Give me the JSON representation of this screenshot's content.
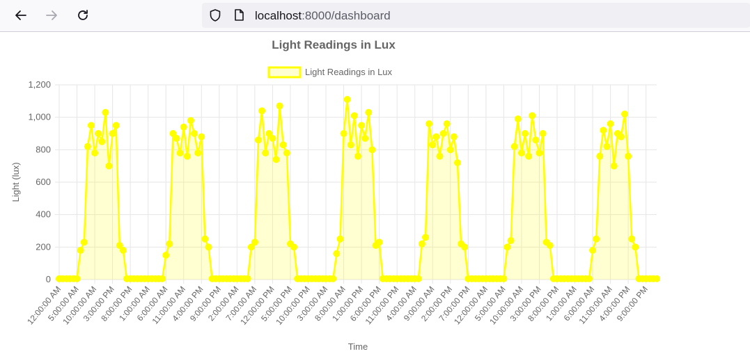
{
  "browser": {
    "url_host": "localhost",
    "url_path": ":8000/dashboard",
    "icons": [
      "back-arrow-icon",
      "forward-arrow-icon",
      "reload-icon",
      "shield-icon",
      "page-icon"
    ]
  },
  "chart_data": {
    "type": "line",
    "title": "Light Readings in Lux",
    "xlabel": "Time",
    "ylabel": "Light (lux)",
    "ylim": [
      0,
      1200
    ],
    "yticks": [
      "0",
      "200",
      "400",
      "600",
      "800",
      "1,000",
      "1,200"
    ],
    "xticks": [
      "12:00:00 AM",
      "5:00:00 AM",
      "10:00:00 AM",
      "3:00:00 PM",
      "8:00:00 PM",
      "1:00:00 AM",
      "6:00:00 AM",
      "11:00:00 AM",
      "4:00:00 PM",
      "9:00:00 PM",
      "2:00:00 AM",
      "7:00:00 AM",
      "12:00:00 PM",
      "5:00:00 PM",
      "10:00:00 PM",
      "3:00:00 AM",
      "8:00:00 AM",
      "1:00:00 PM",
      "6:00:00 PM",
      "11:00:00 PM",
      "4:00:00 AM",
      "9:00:00 AM",
      "2:00:00 PM",
      "7:00:00 PM",
      "12:00:00 AM",
      "5:00:00 AM",
      "10:00:00 AM",
      "3:00:00 PM",
      "8:00:00 PM",
      "1:00:00 AM",
      "6:00:00 AM",
      "11:00:00 AM",
      "4:00:00 PM",
      "9:00:00 PM"
    ],
    "grid": true,
    "legend": "top",
    "colors": {
      "line": "#ffff00",
      "fill": "rgba(255,255,0,0.18)",
      "grid": "#e6e6e6",
      "text": "#666666"
    },
    "series": [
      {
        "name": "Light Readings in Lux",
        "x_hours": [
          0,
          1,
          2,
          3,
          4,
          5,
          6,
          7,
          8,
          9,
          10,
          11,
          12,
          13,
          14,
          15,
          16,
          17,
          18,
          19,
          20,
          21,
          22,
          23,
          24,
          25,
          26,
          27,
          28,
          29,
          30,
          31,
          32,
          33,
          34,
          35,
          36,
          37,
          38,
          39,
          40,
          41,
          42,
          43,
          44,
          45,
          46,
          47,
          48,
          49,
          50,
          51,
          52,
          53,
          54,
          55,
          56,
          57,
          58,
          59,
          60,
          61,
          62,
          63,
          64,
          65,
          66,
          67,
          68,
          69,
          70,
          71,
          72,
          73,
          74,
          75,
          76,
          77,
          78,
          79,
          80,
          81,
          82,
          83,
          84,
          85,
          86,
          87,
          88,
          89,
          90,
          91,
          92,
          93,
          94,
          95,
          96,
          97,
          98,
          99,
          100,
          101,
          102,
          103,
          104,
          105,
          106,
          107,
          108,
          109,
          110,
          111,
          112,
          113,
          114,
          115,
          116,
          117,
          118,
          119,
          120,
          121,
          122,
          123,
          124,
          125,
          126,
          127,
          128,
          129,
          130,
          131,
          132,
          133,
          134,
          135,
          136,
          137,
          138,
          139,
          140,
          141,
          142,
          143,
          144,
          145,
          146,
          147,
          148,
          149,
          150,
          151,
          152,
          153,
          154,
          155,
          156,
          157,
          158,
          159,
          160,
          161,
          162,
          163,
          164,
          165,
          166,
          167,
          168
        ],
        "values": [
          5,
          5,
          5,
          5,
          5,
          5,
          180,
          230,
          820,
          950,
          780,
          900,
          850,
          1030,
          700,
          900,
          950,
          210,
          180,
          5,
          5,
          5,
          5,
          5,
          5,
          5,
          5,
          5,
          5,
          5,
          150,
          220,
          900,
          870,
          780,
          940,
          760,
          980,
          900,
          780,
          880,
          250,
          200,
          5,
          5,
          5,
          5,
          5,
          5,
          5,
          5,
          5,
          5,
          5,
          200,
          230,
          860,
          1040,
          780,
          900,
          870,
          740,
          1070,
          830,
          780,
          220,
          200,
          5,
          5,
          5,
          5,
          5,
          5,
          5,
          5,
          5,
          5,
          5,
          160,
          250,
          900,
          1110,
          830,
          1010,
          760,
          950,
          870,
          1030,
          800,
          210,
          230,
          5,
          5,
          5,
          5,
          5,
          5,
          5,
          5,
          5,
          5,
          5,
          220,
          260,
          960,
          830,
          880,
          760,
          900,
          960,
          800,
          880,
          720,
          220,
          200,
          5,
          5,
          5,
          5,
          5,
          5,
          5,
          5,
          5,
          5,
          5,
          200,
          240,
          820,
          990,
          780,
          900,
          760,
          1010,
          860,
          780,
          900,
          230,
          210,
          5,
          5,
          5,
          5,
          5,
          5,
          5,
          5,
          5,
          5,
          5,
          180,
          250,
          760,
          920,
          820,
          960,
          700,
          900,
          880,
          1020,
          760,
          250,
          200,
          5,
          5,
          5,
          5,
          5,
          5
        ]
      }
    ]
  }
}
